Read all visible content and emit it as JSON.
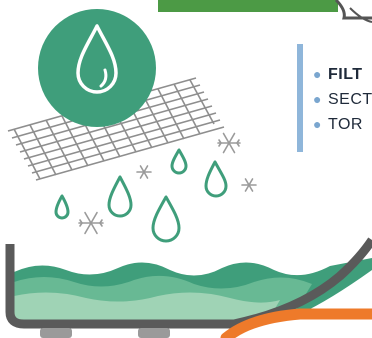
{
  "bullets": [
    {
      "text": "FILT",
      "strong": true
    },
    {
      "text": "SECT",
      "strong": false
    },
    {
      "text": "TOR",
      "strong": false
    }
  ],
  "colors": {
    "teal": "#3f9e7b",
    "light_teal": "#68b994",
    "pale_teal": "#9fd3b5",
    "green_bar": "#4c9a45",
    "orange": "#ee7a2a",
    "tank_gray": "#5a5a5a",
    "bullet_accent": "#8fb6da",
    "mesh": "#8e8e8e"
  },
  "icons": [
    "water-drop-icon",
    "snowflake-icon",
    "filter-mesh-icon"
  ]
}
